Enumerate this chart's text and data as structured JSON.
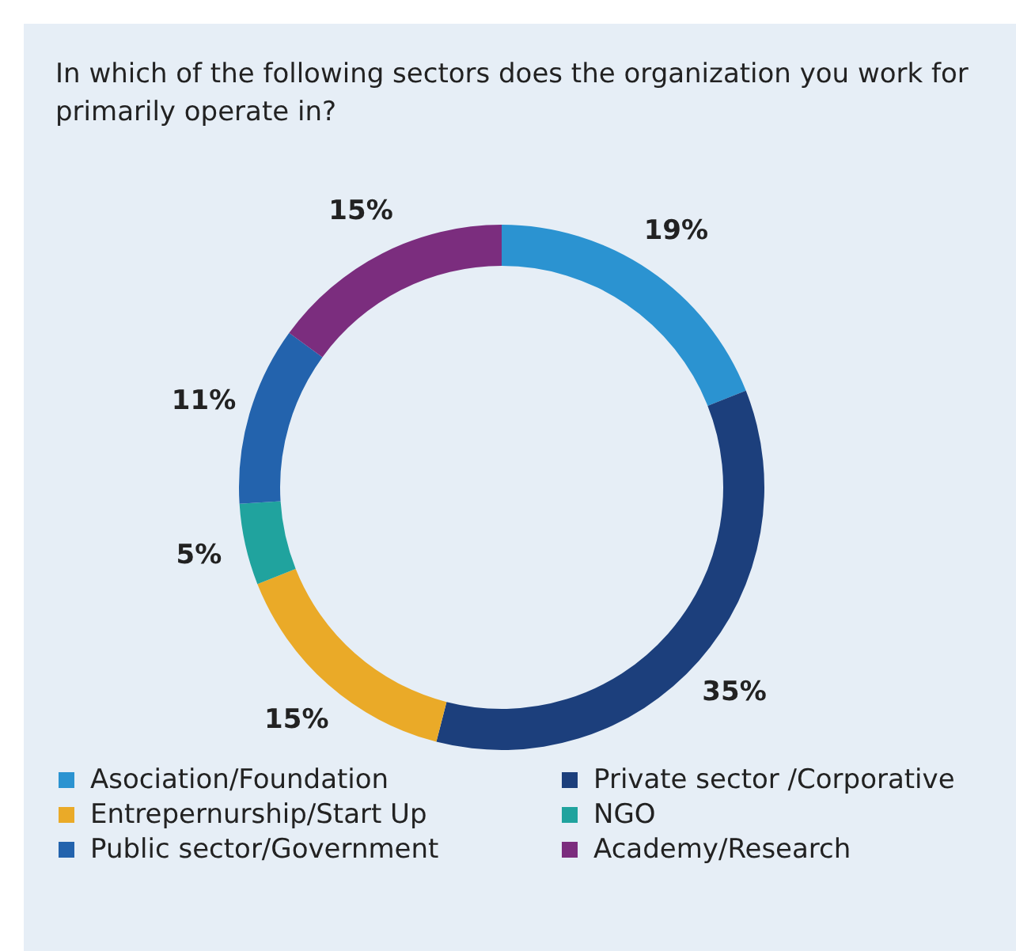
{
  "chart_data": {
    "type": "donut",
    "title": "In which of the following sectors does the organization you work for primarily operate in?",
    "categories": [
      "Asociation/Foundation",
      "Private sector /Corporative",
      "Entrepernurship/Start Up",
      "NGO",
      "Public sector/Government",
      "Academy/Research"
    ],
    "values": [
      19,
      35,
      15,
      5,
      11,
      15
    ],
    "colors": [
      "#2b93d1",
      "#1c3f7c",
      "#eaaa28",
      "#20a39e",
      "#2363ad",
      "#7b2d7e"
    ],
    "value_labels": [
      "19%",
      "35%",
      "15%",
      "5%",
      "11%",
      "15%"
    ],
    "legend": "bottom"
  }
}
